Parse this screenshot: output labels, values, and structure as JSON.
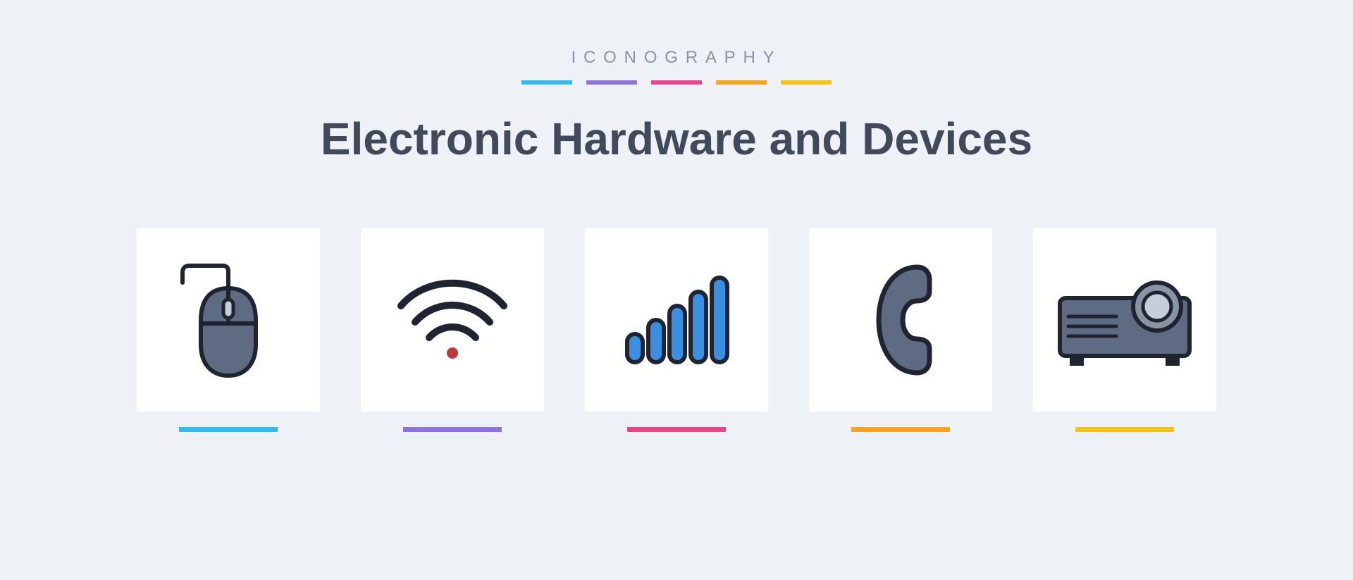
{
  "header": {
    "small_title": "ICONOGRAPHY",
    "main_title": "Electronic Hardware and Devices"
  },
  "palette": {
    "bg": "#eef1f6",
    "card": "#ffffff",
    "text_muted": "#8a93a3",
    "text_title": "#414a5a",
    "blue": "#35b8ea",
    "purple": "#8d72d8",
    "pink": "#e6458b",
    "orange": "#f5a321",
    "gold": "#f3c31a",
    "icon_outline": "#1f2430",
    "icon_fill_dark": "#5f6b82",
    "icon_fill_blue": "#3a8fe0",
    "wifi_dot": "#c13a3a"
  },
  "small_bars": [
    {
      "color": "#35b8ea"
    },
    {
      "color": "#8d72d8"
    },
    {
      "color": "#e6458b"
    },
    {
      "color": "#f5a321"
    },
    {
      "color": "#f3c31a"
    }
  ],
  "icons": [
    {
      "name": "mouse",
      "underline": "#35b8ea"
    },
    {
      "name": "wifi",
      "underline": "#8d72d8"
    },
    {
      "name": "signal",
      "underline": "#e6458b"
    },
    {
      "name": "phone",
      "underline": "#f5a321"
    },
    {
      "name": "projector",
      "underline": "#f3c31a"
    }
  ]
}
